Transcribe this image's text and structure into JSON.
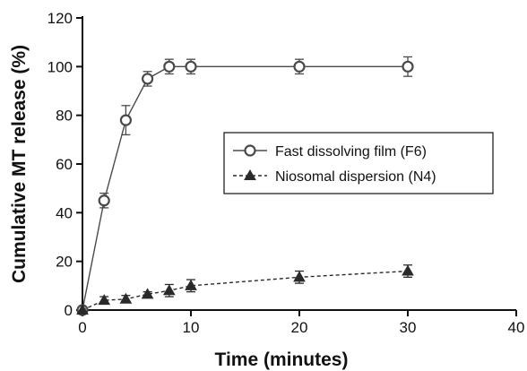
{
  "chart_data": {
    "type": "line",
    "title": "",
    "xlabel": "Time (minutes)",
    "ylabel": "Cumulative MT release (%)",
    "xlim": [
      0,
      40
    ],
    "ylim": [
      0,
      120
    ],
    "xticks": [
      0,
      10,
      20,
      30,
      40
    ],
    "yticks": [
      0,
      20,
      40,
      60,
      80,
      100,
      120
    ],
    "grid": false,
    "legend_position": "right",
    "series": [
      {
        "name": "Fast dissolving film (F6)",
        "line_style": "solid",
        "marker": "open-circle",
        "color": "#4a4a4a",
        "x": [
          0,
          2,
          4,
          6,
          8,
          10,
          20,
          30
        ],
        "y": [
          0,
          45,
          78,
          95,
          100,
          100,
          100,
          100
        ],
        "error": [
          0,
          3,
          6,
          3,
          3,
          3,
          3,
          4
        ]
      },
      {
        "name": "Niosomal dispersion (N4)",
        "line_style": "dashed",
        "marker": "filled-triangle",
        "color": "#2a2a2a",
        "x": [
          0,
          2,
          4,
          6,
          8,
          10,
          20,
          30
        ],
        "y": [
          0,
          4,
          4.5,
          6.5,
          8,
          10,
          13.5,
          16
        ],
        "error": [
          0,
          1.5,
          1.5,
          1,
          2.5,
          2.5,
          2.5,
          2.5
        ]
      }
    ]
  }
}
